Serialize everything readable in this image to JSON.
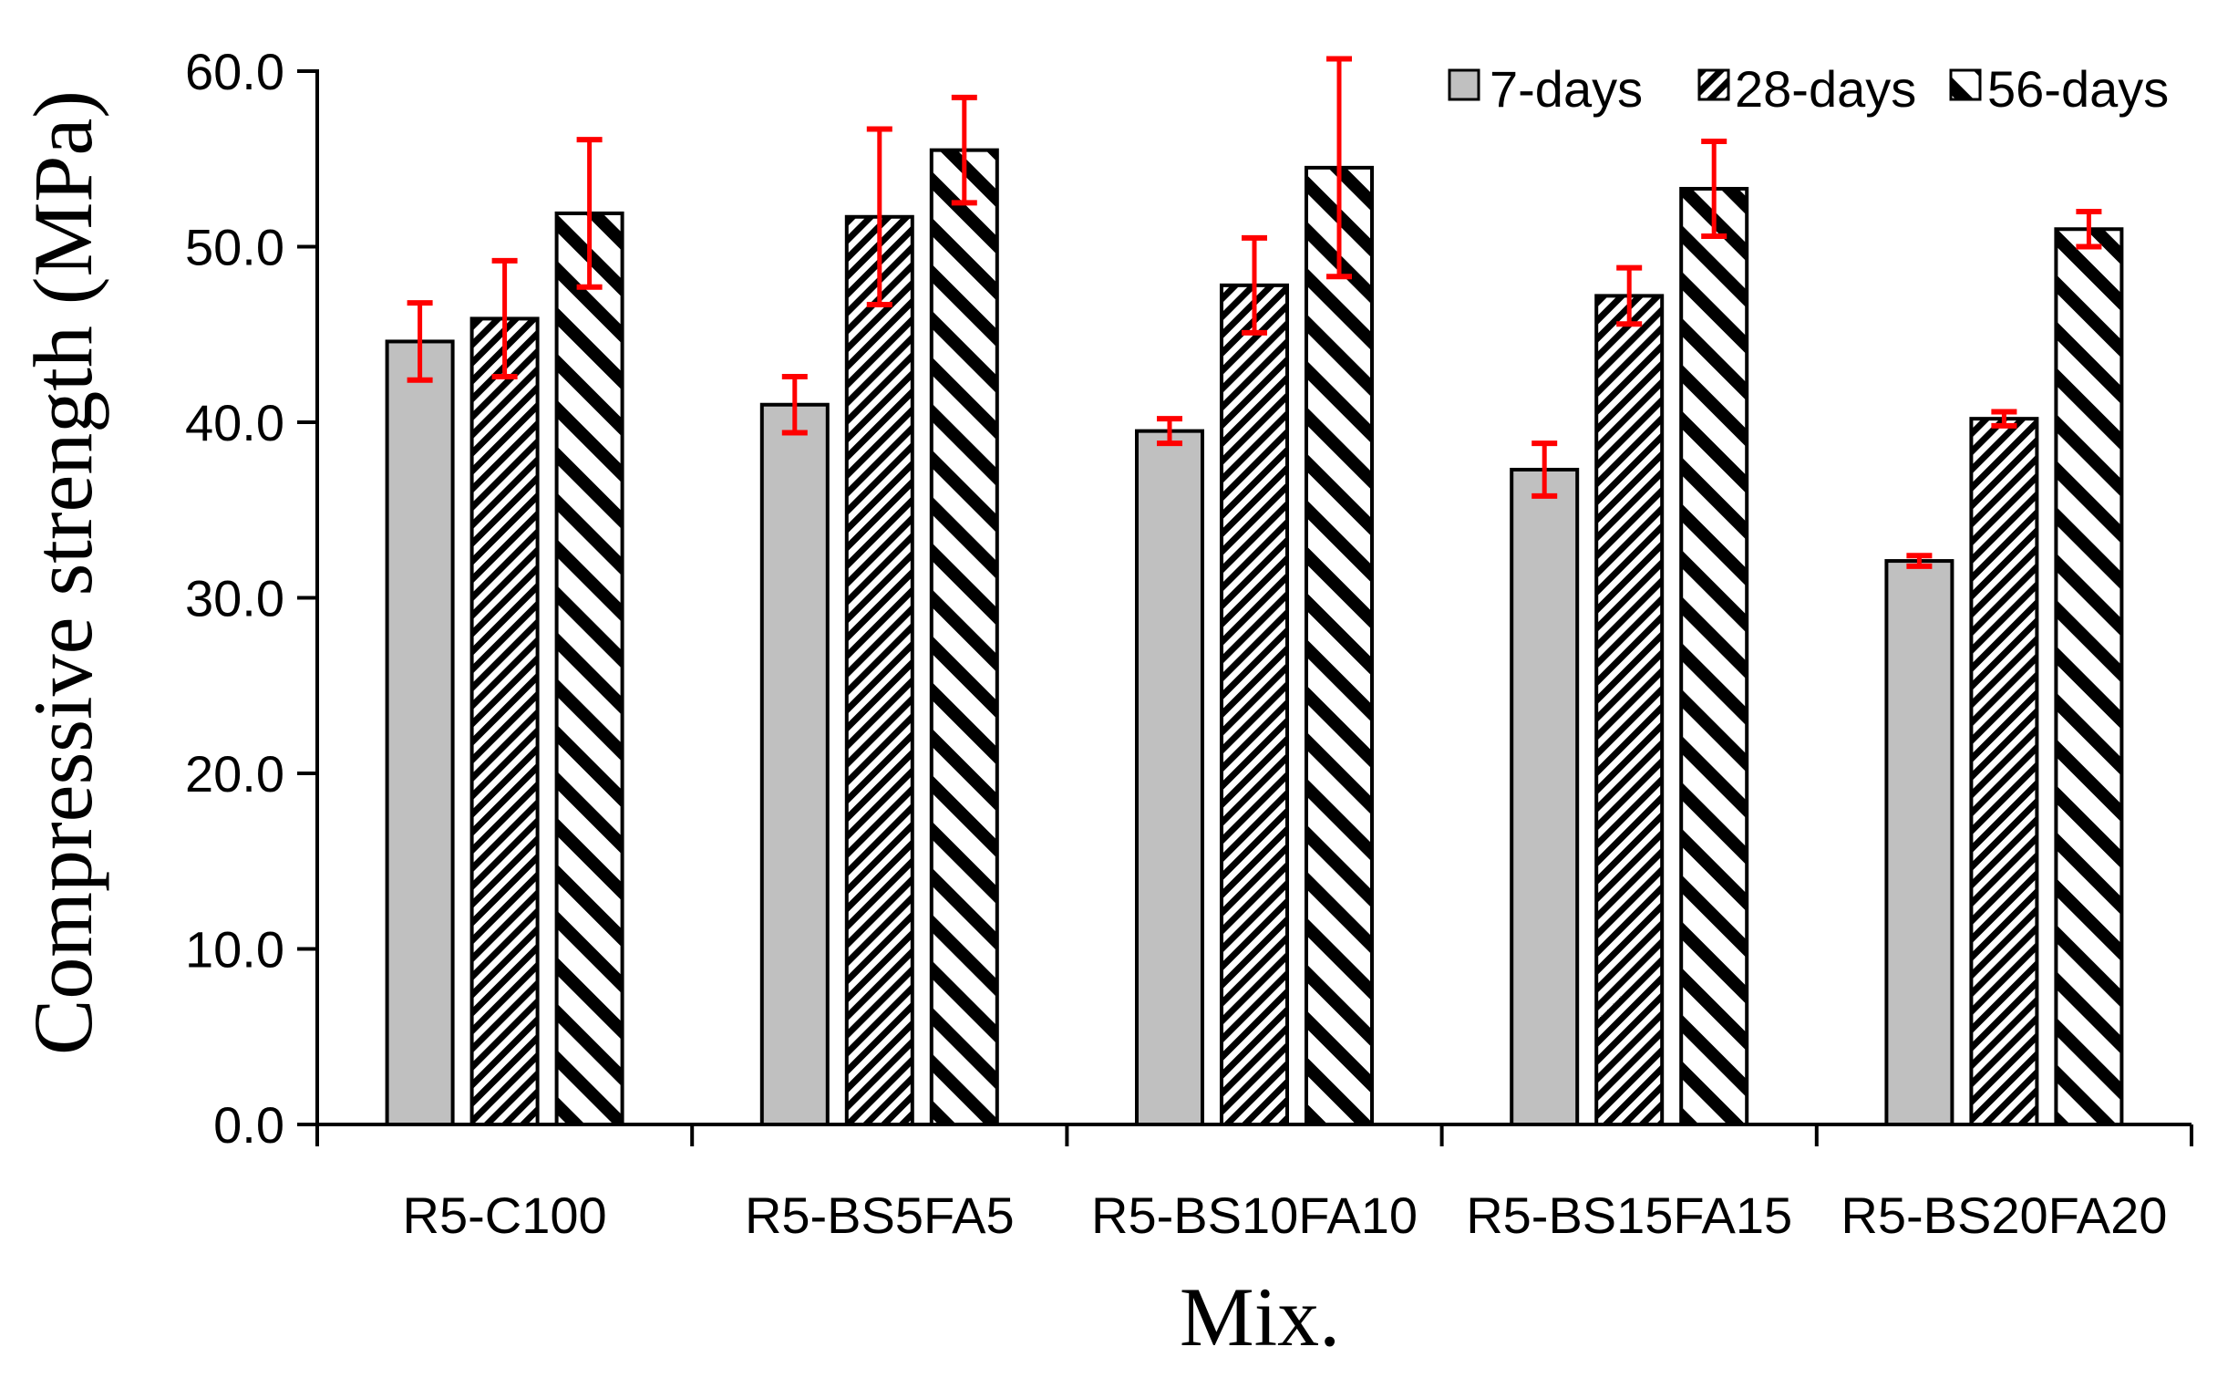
{
  "chart_data": {
    "type": "bar",
    "title": "",
    "xlabel": "Mix.",
    "ylabel": "Compressive strength (MPa)",
    "ylim": [
      0,
      60
    ],
    "yticks": [
      "0.0",
      "10.0",
      "20.0",
      "30.0",
      "40.0",
      "50.0",
      "60.0"
    ],
    "grid": false,
    "legend_position": "top-right",
    "categories": [
      "R5-C100",
      "R5-BS5FA5",
      "R5-BS10FA10",
      "R5-BS15FA15",
      "R5-BS20FA20"
    ],
    "series": [
      {
        "name": "7-days",
        "pattern": "solid-gray",
        "values": [
          44.6,
          41.0,
          39.5,
          37.3,
          32.1
        ],
        "errors": [
          2.2,
          1.6,
          0.7,
          1.5,
          0.3
        ]
      },
      {
        "name": "28-days",
        "pattern": "fine-hatch",
        "values": [
          45.9,
          51.7,
          47.8,
          47.2,
          40.2
        ],
        "errors": [
          3.3,
          5.0,
          2.7,
          1.6,
          0.4
        ]
      },
      {
        "name": "56-days",
        "pattern": "wide-hatch",
        "values": [
          51.9,
          55.5,
          54.5,
          53.3,
          51.0
        ],
        "errors": [
          4.2,
          3.0,
          6.2,
          2.7,
          1.0
        ]
      }
    ],
    "colors": {
      "bar_gray": "#c0c0c0",
      "error_bar": "#ff0000",
      "axis": "#000000"
    }
  }
}
